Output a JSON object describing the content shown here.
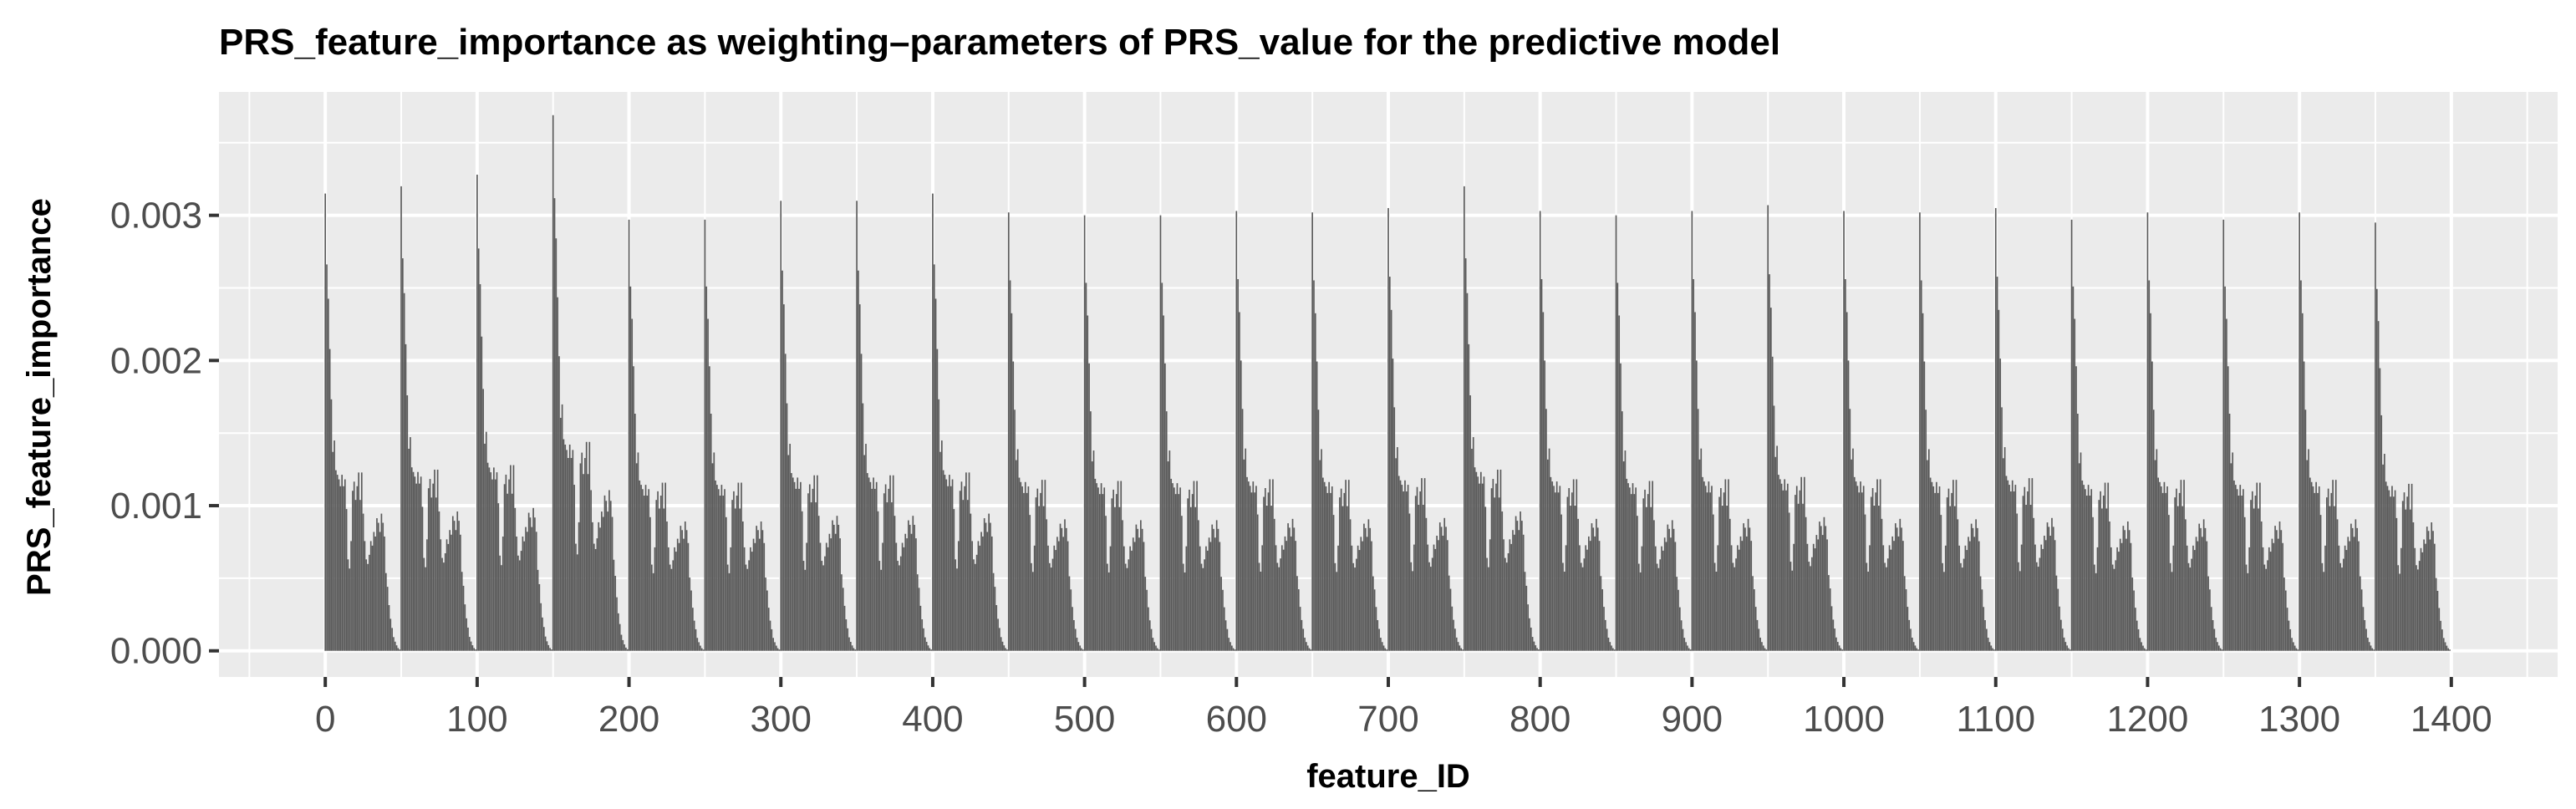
{
  "chart_data": {
    "type": "bar",
    "title": "PRS_feature_importance as weighting–parameters of PRS_value for the predictive model",
    "xlabel": "feature_ID",
    "ylabel": "PRS_feature_importance",
    "xlim": [
      -70,
      1470
    ],
    "ylim": [
      -0.00018,
      0.00385
    ],
    "x_ticks": [
      0,
      100,
      200,
      300,
      400,
      500,
      600,
      700,
      800,
      900,
      1000,
      1100,
      1200,
      1300,
      1400
    ],
    "x_tick_labels": [
      "0",
      "100",
      "200",
      "300",
      "400",
      "500",
      "600",
      "700",
      "800",
      "900",
      "1000",
      "1100",
      "1200",
      "1300",
      "1400"
    ],
    "y_ticks": [
      0,
      0.001,
      0.002,
      0.003
    ],
    "y_tick_labels": [
      "0.000",
      "0.001",
      "0.002",
      "0.003"
    ],
    "grid": true,
    "bar_color": "#595959",
    "panel_background": "#ebebeb",
    "grid_color": "#ffffff",
    "block_size": 50,
    "block_starts": [
      0,
      50,
      100,
      150,
      200,
      250,
      300,
      350,
      400,
      450,
      500,
      550,
      600,
      650,
      700,
      750,
      800,
      850,
      900,
      950,
      1000,
      1050,
      1100,
      1150,
      1200,
      1250,
      1300,
      1350
    ],
    "block_peaks": [
      0.00315,
      0.0032,
      0.00328,
      0.00369,
      0.00297,
      0.00297,
      0.0031,
      0.0031,
      0.00315,
      0.00302,
      0.003,
      0.003,
      0.00303,
      0.00302,
      0.00305,
      0.0032,
      0.00303,
      0.003,
      0.00303,
      0.00307,
      0.00303,
      0.00302,
      0.00305,
      0.00297,
      0.00302,
      0.00297,
      0.00302,
      0.00295
    ],
    "block_profile": [
      1.0,
      0.845,
      0.77,
      0.66,
      0.55,
      0.435,
      0.46,
      0.395,
      0.385,
      0.375,
      0.36,
      0.385,
      0.36,
      0.375,
      0.31,
      0.2,
      0.18,
      0.24,
      0.35,
      0.37,
      0.33,
      0.36,
      0.39,
      0.33,
      0.39,
      0.3,
      0.24,
      0.2,
      0.19,
      0.21,
      0.24,
      0.23,
      0.26,
      0.25,
      0.29,
      0.28,
      0.26,
      0.3,
      0.28,
      0.25,
      0.17,
      0.14,
      0.1,
      0.07,
      0.05,
      0.03,
      0.02,
      0.012,
      0.006,
      0.003
    ]
  }
}
